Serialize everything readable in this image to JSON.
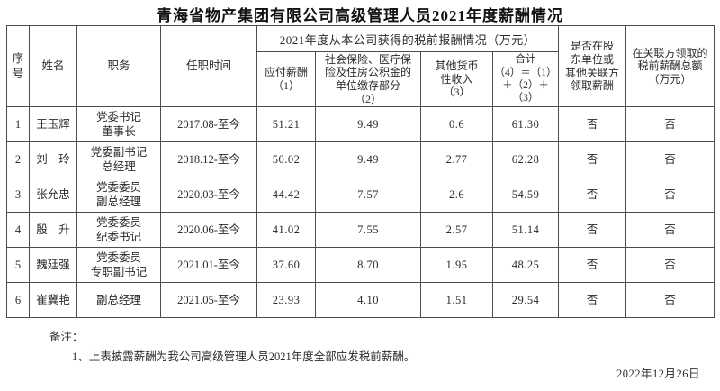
{
  "title": "青海省物产集团有限公司高级管理人员2021年度薪酬情况",
  "table": {
    "header": {
      "seq": "序\n号",
      "name": "姓名",
      "position": "职务",
      "tenure": "任职时间",
      "group": "2021年度从本公司获得的税前报酬情况（万元）",
      "payable": "应付薪酬\n（1）",
      "insurance": "社会保险、医疗保\n险及住房公积金的\n单位缴存部分\n（2）",
      "other": "其他货币\n性收入\n（3）",
      "total": "合计\n（4）＝（1）\n＋（2）＋\n（3）",
      "flag": "是否在股\n东单位或\n其他关联方\n领取薪酬",
      "amount": "在关联方领取的\n税前薪酬总额\n（万元）"
    },
    "rows": [
      {
        "seq": "1",
        "name": "王玉辉",
        "position": "党委书记\n董事长",
        "tenure": "2017.08-至今",
        "payable": "51.21",
        "insurance": "9.49",
        "other": "0.6",
        "total": "61.30",
        "flag": "否",
        "amount": "否"
      },
      {
        "seq": "2",
        "name": "刘　玲",
        "position": "党委副书记\n总经理",
        "tenure": "2018.12-至今",
        "payable": "50.02",
        "insurance": "9.49",
        "other": "2.77",
        "total": "62.28",
        "flag": "否",
        "amount": "否"
      },
      {
        "seq": "3",
        "name": "张允忠",
        "position": "党委委员\n副总经理",
        "tenure": "2020.03-至今",
        "payable": "44.42",
        "insurance": "7.57",
        "other": "2.6",
        "total": "54.59",
        "flag": "否",
        "amount": "否"
      },
      {
        "seq": "4",
        "name": "殷　升",
        "position": "党委委员\n纪委书记",
        "tenure": "2020.06-至今",
        "payable": "41.02",
        "insurance": "7.55",
        "other": "2.57",
        "total": "51.14",
        "flag": "否",
        "amount": "否"
      },
      {
        "seq": "5",
        "name": "魏廷强",
        "position": "党委委员\n专职副书记",
        "tenure": "2021.01-至今",
        "payable": "37.60",
        "insurance": "8.70",
        "other": "1.95",
        "total": "48.25",
        "flag": "否",
        "amount": "否"
      },
      {
        "seq": "6",
        "name": "崔冀艳",
        "position": "副总经理",
        "tenure": "2021.05-至今",
        "payable": "23.93",
        "insurance": "4.10",
        "other": "1.51",
        "total": "29.54",
        "flag": "否",
        "amount": "否"
      }
    ]
  },
  "notes": {
    "label": "备注：",
    "items": [
      "1、上表披露薪酬为我公司高级管理人员2021年度全部应发税前薪酬。"
    ]
  },
  "date": "2022年12月26日"
}
